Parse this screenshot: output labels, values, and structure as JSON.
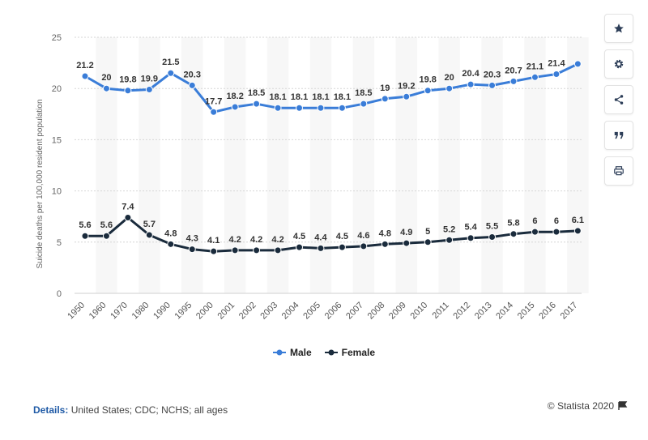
{
  "chart_data": {
    "type": "line",
    "categories": [
      "1950",
      "1960",
      "1970",
      "1980",
      "1990",
      "1995",
      "2000",
      "2001",
      "2002",
      "2003",
      "2004",
      "2005",
      "2006",
      "2007",
      "2008",
      "2009",
      "2010",
      "2011",
      "2012",
      "2013",
      "2014",
      "2015",
      "2016",
      "2017"
    ],
    "series": [
      {
        "name": "Male",
        "color": "#3a7dd8",
        "values": [
          21.2,
          20,
          19.8,
          19.9,
          21.5,
          20.3,
          17.7,
          18.2,
          18.5,
          18.1,
          18.1,
          18.1,
          18.1,
          18.5,
          19,
          19.2,
          19.8,
          20,
          20.4,
          20.3,
          20.7,
          21.1,
          21.4,
          22.4
        ]
      },
      {
        "name": "Female",
        "color": "#1a2b3c",
        "values": [
          5.6,
          5.6,
          7.4,
          5.7,
          4.8,
          4.3,
          4.1,
          4.2,
          4.2,
          4.2,
          4.5,
          4.4,
          4.5,
          4.6,
          4.8,
          4.9,
          5,
          5.2,
          5.4,
          5.5,
          5.8,
          6,
          6,
          6.1
        ]
      }
    ],
    "male_labels": [
      "21.2",
      "20",
      "19.8",
      "19.9",
      "21.5",
      "20.3",
      "17.7",
      "18.2",
      "18.5",
      "18.1",
      "18.1",
      "18.1",
      "18.1",
      "18.5",
      "19",
      "19.2",
      "19.8",
      "20",
      "20.4",
      "20.3",
      "20.7",
      "21.1",
      "21.4",
      ""
    ],
    "female_labels": [
      "5.6",
      "5.6",
      "7.4",
      "5.7",
      "4.8",
      "4.3",
      "4.1",
      "4.2",
      "4.2",
      "4.2",
      "4.5",
      "4.4",
      "4.5",
      "4.6",
      "4.8",
      "4.9",
      "5",
      "5.2",
      "5.4",
      "5.5",
      "5.8",
      "6",
      "6",
      "6.1"
    ],
    "ylabel": "Suicide deaths per 100,000 resident population",
    "yticks": [
      0,
      5,
      10,
      15,
      20,
      25
    ],
    "ylim": [
      0,
      25
    ],
    "grid": true,
    "legend_position": "bottom"
  },
  "legend": {
    "male": "Male",
    "female": "Female"
  },
  "footer": {
    "details_label": "Details:",
    "details_text": "United States; CDC; NCHS; all ages",
    "credit": "© Statista 2020"
  },
  "toolbar": {
    "icons": [
      "star-icon",
      "gear-icon",
      "share-icon",
      "quote-icon",
      "print-icon"
    ]
  }
}
